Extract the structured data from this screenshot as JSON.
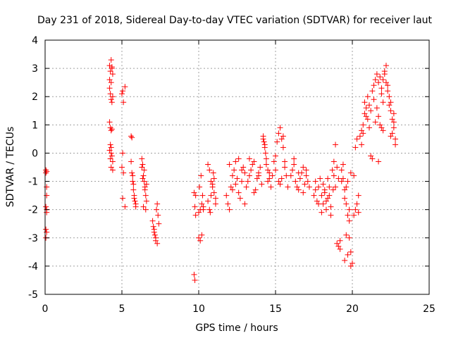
{
  "chart_data": {
    "type": "scatter",
    "title": "Day 231 of 2018, Sidereal Day-to-day VTEC variation (SDTVAR) for receiver laut",
    "xlabel": "GPS time / hours",
    "ylabel": "SDTVAR / TECUs",
    "xlim": [
      0,
      25
    ],
    "ylim": [
      -5,
      4
    ],
    "xticks": [
      0,
      5,
      10,
      15,
      20,
      25
    ],
    "yticks": [
      -5,
      -4,
      -3,
      -2,
      -1,
      0,
      1,
      2,
      3,
      4
    ],
    "grid": true,
    "marker": "plus",
    "color": "#ff0000",
    "series": [
      {
        "name": "SDTVAR",
        "x": [
          0.05,
          0.05,
          0.1,
          0.1,
          0.05,
          0.1,
          0.05,
          0.1,
          0.05,
          0.1,
          0.1,
          4.2,
          4.25,
          4.3,
          4.35,
          4.4,
          4.3,
          4.2,
          4.25,
          4.3,
          4.35,
          4.4,
          4.2,
          4.25,
          4.3,
          4.35,
          4.25,
          4.3,
          4.2,
          4.35,
          4.4,
          4.3,
          4.25,
          4.3,
          4.4,
          4.2,
          4.35,
          5.0,
          5.05,
          5.1,
          5.2,
          5.0,
          5.05,
          5.1,
          5.2,
          5.05,
          5.6,
          5.65,
          5.7,
          5.75,
          5.8,
          5.85,
          5.9,
          5.7,
          5.75,
          5.8,
          5.6,
          5.65,
          5.9,
          6.3,
          6.35,
          6.4,
          6.45,
          6.5,
          6.55,
          6.6,
          6.4,
          6.45,
          6.5,
          6.3,
          6.55,
          6.6,
          6.35,
          7.0,
          7.05,
          7.1,
          7.15,
          7.2,
          7.25,
          7.3,
          7.35,
          7.4,
          7.2,
          7.3,
          7.1,
          9.7,
          9.75,
          9.8,
          9.7,
          9.75,
          9.8,
          10.0,
          10.1,
          10.2,
          10.3,
          10.0,
          10.1,
          10.2,
          10.3,
          10.05,
          10.15,
          10.25,
          10.6,
          10.7,
          10.8,
          10.9,
          11.0,
          11.1,
          10.7,
          10.8,
          10.9,
          11.0,
          10.6,
          11.1,
          10.75,
          10.95,
          11.8,
          11.9,
          12.0,
          12.1,
          12.2,
          12.3,
          12.4,
          12.5,
          12.6,
          12.7,
          12.8,
          12.9,
          13.0,
          12.0,
          12.2,
          12.4,
          12.6,
          12.8,
          13.0,
          13.1,
          13.2,
          13.3,
          13.4,
          13.5,
          13.6,
          13.7,
          13.8,
          13.9,
          14.0,
          14.1,
          13.3,
          13.6,
          13.9,
          14.2,
          14.25,
          14.3,
          14.35,
          14.4,
          14.5,
          14.6,
          14.7,
          14.8,
          14.2,
          14.3,
          14.4,
          14.5,
          14.6,
          14.9,
          15.0,
          15.1,
          15.2,
          15.3,
          15.4,
          15.5,
          15.6,
          15.7,
          15.8,
          15.2,
          15.4,
          15.6,
          15.0,
          15.3,
          15.5,
          16.0,
          16.1,
          16.2,
          16.3,
          16.4,
          16.5,
          16.6,
          16.7,
          16.8,
          16.9,
          17.0,
          17.1,
          17.2,
          16.2,
          16.5,
          16.8,
          17.0,
          17.5,
          17.6,
          17.7,
          17.8,
          17.9,
          18.0,
          18.1,
          18.2,
          18.3,
          18.4,
          18.5,
          18.6,
          17.6,
          17.8,
          18.0,
          18.2,
          18.4,
          18.6,
          18.1,
          18.3,
          18.5,
          18.7,
          18.8,
          18.9,
          19.0,
          19.1,
          19.2,
          19.3,
          18.8,
          19.0,
          19.2,
          18.9,
          19.1,
          18.75,
          19.3,
          19.4,
          19.5,
          19.6,
          19.7,
          19.8,
          19.9,
          20.0,
          19.4,
          19.6,
          19.8,
          19.5,
          19.7,
          19.9,
          19.6,
          19.8,
          19.7,
          19.5,
          19.9,
          20.1,
          20.2,
          20.3,
          20.4,
          20.2,
          20.3,
          20.1,
          20.4,
          20.5,
          20.6,
          20.7,
          20.8,
          20.9,
          21.0,
          21.1,
          21.2,
          21.3,
          20.6,
          20.8,
          21.0,
          21.2,
          20.7,
          20.9,
          21.1,
          21.3,
          21.4,
          21.5,
          21.6,
          21.7,
          21.8,
          21.9,
          22.0,
          21.5,
          21.7,
          21.9,
          21.6,
          21.8,
          22.0,
          21.4,
          21.9,
          21.7,
          22.0,
          22.1,
          22.2,
          22.3,
          22.4,
          22.5,
          22.6,
          22.7,
          22.8,
          22.1,
          22.3,
          22.5,
          22.7,
          22.2,
          22.4,
          22.6,
          22.8,
          22.5,
          22.7
        ],
        "y": [
          -0.6,
          -0.7,
          -1.2,
          -1.5,
          -1.9,
          -2.0,
          -2.7,
          -2.8,
          -3.0,
          -0.65,
          -2.1,
          3.1,
          2.9,
          3.3,
          3.0,
          2.8,
          2.5,
          2.3,
          2.1,
          1.9,
          1.8,
          2.0,
          1.1,
          0.9,
          0.8,
          0.85,
          0.3,
          0.2,
          0.1,
          -0.1,
          -0.3,
          -0.5,
          -0.2,
          0.0,
          -0.6,
          2.6,
          3.05,
          2.1,
          2.2,
          1.8,
          2.35,
          -0.5,
          0.0,
          -0.7,
          -1.9,
          -1.6,
          0.6,
          0.55,
          -1.0,
          -1.3,
          -1.5,
          -1.7,
          -1.9,
          -0.8,
          -1.1,
          -1.6,
          -0.3,
          -0.7,
          -1.8,
          -0.2,
          -0.4,
          -0.8,
          -1.0,
          -1.3,
          -1.5,
          -1.7,
          -1.9,
          -0.6,
          -1.2,
          -0.5,
          -2.0,
          -1.1,
          -0.9,
          -2.4,
          -2.6,
          -2.8,
          -2.9,
          -3.1,
          -2.0,
          -1.8,
          -2.2,
          -2.5,
          -3.0,
          -3.2,
          -2.7,
          -1.4,
          -1.9,
          -2.2,
          -4.3,
          -4.5,
          -1.5,
          -2.1,
          -2.0,
          -1.8,
          -1.9,
          -3.0,
          -3.1,
          -2.9,
          -2.0,
          -1.2,
          -0.8,
          -1.5,
          -0.4,
          -0.6,
          -1.0,
          -1.2,
          -1.4,
          -1.8,
          -2.0,
          -1.5,
          -1.1,
          -0.9,
          -1.7,
          -1.6,
          -2.1,
          -0.7,
          -1.5,
          -1.8,
          -2.0,
          -1.2,
          -0.8,
          -0.6,
          -0.3,
          -0.9,
          -1.4,
          -1.6,
          -1.0,
          -0.5,
          -0.7,
          -0.4,
          -1.3,
          -1.1,
          -0.2,
          -0.6,
          -1.8,
          -1.2,
          -1.0,
          -0.8,
          -0.6,
          -0.4,
          -0.3,
          -1.3,
          -0.9,
          -0.7,
          -0.5,
          -1.1,
          -0.2,
          -1.4,
          -0.8,
          0.6,
          0.4,
          0.2,
          0.0,
          -0.2,
          -0.6,
          -0.9,
          -1.2,
          -0.8,
          0.5,
          0.3,
          -0.4,
          -1.0,
          -0.7,
          -0.3,
          -0.1,
          0.4,
          0.7,
          0.9,
          0.5,
          0.2,
          -0.5,
          -0.8,
          -1.2,
          -1.0,
          -0.9,
          -0.3,
          -0.6,
          -1.1,
          0.6,
          -0.8,
          -0.6,
          -0.4,
          -1.0,
          -1.2,
          -1.3,
          -0.9,
          -0.7,
          -0.5,
          -1.1,
          -0.8,
          -1.0,
          -1.2,
          -0.2,
          -0.7,
          -1.4,
          -0.6,
          -1.5,
          -1.3,
          -1.7,
          -1.2,
          -0.9,
          -1.5,
          -1.8,
          -1.4,
          -2.0,
          -1.6,
          -1.2,
          -1.9,
          -1.0,
          -1.8,
          -2.1,
          -1.3,
          -0.9,
          -2.2,
          -1.1,
          -1.7,
          -1.5,
          -0.6,
          -0.8,
          -1.2,
          -3.2,
          -3.3,
          -3.1,
          -1.0,
          -0.3,
          -0.5,
          -3.4,
          0.3,
          -0.9,
          -1.3,
          -0.6,
          -0.9,
          -1.3,
          -1.8,
          -2.2,
          -3.0,
          -3.5,
          -3.9,
          -0.4,
          -1.2,
          -2.4,
          -3.8,
          -3.6,
          -4.0,
          -2.9,
          -2.0,
          -1.0,
          -1.6,
          -0.7,
          -2.2,
          -2.0,
          -1.8,
          -2.1,
          0.2,
          0.5,
          -0.8,
          -1.5,
          0.6,
          0.8,
          1.0,
          1.4,
          1.6,
          1.2,
          0.9,
          -0.1,
          -0.2,
          0.3,
          1.8,
          2.0,
          1.5,
          0.7,
          1.3,
          1.7,
          2.2,
          2.4,
          2.6,
          2.8,
          2.5,
          2.7,
          2.3,
          1.8,
          1.1,
          1.3,
          0.9,
          1.6,
          1.0,
          0.8,
          1.9,
          2.1,
          -0.3,
          2.6,
          2.8,
          3.1,
          2.4,
          2.0,
          1.5,
          1.2,
          0.9,
          0.5,
          2.9,
          2.2,
          1.8,
          1.1,
          2.5,
          1.7,
          0.7,
          0.3,
          0.6,
          1.4
        ],
        "notes": "approximate reading of the plotted points; the plot has many more markers than listed"
      }
    ]
  }
}
